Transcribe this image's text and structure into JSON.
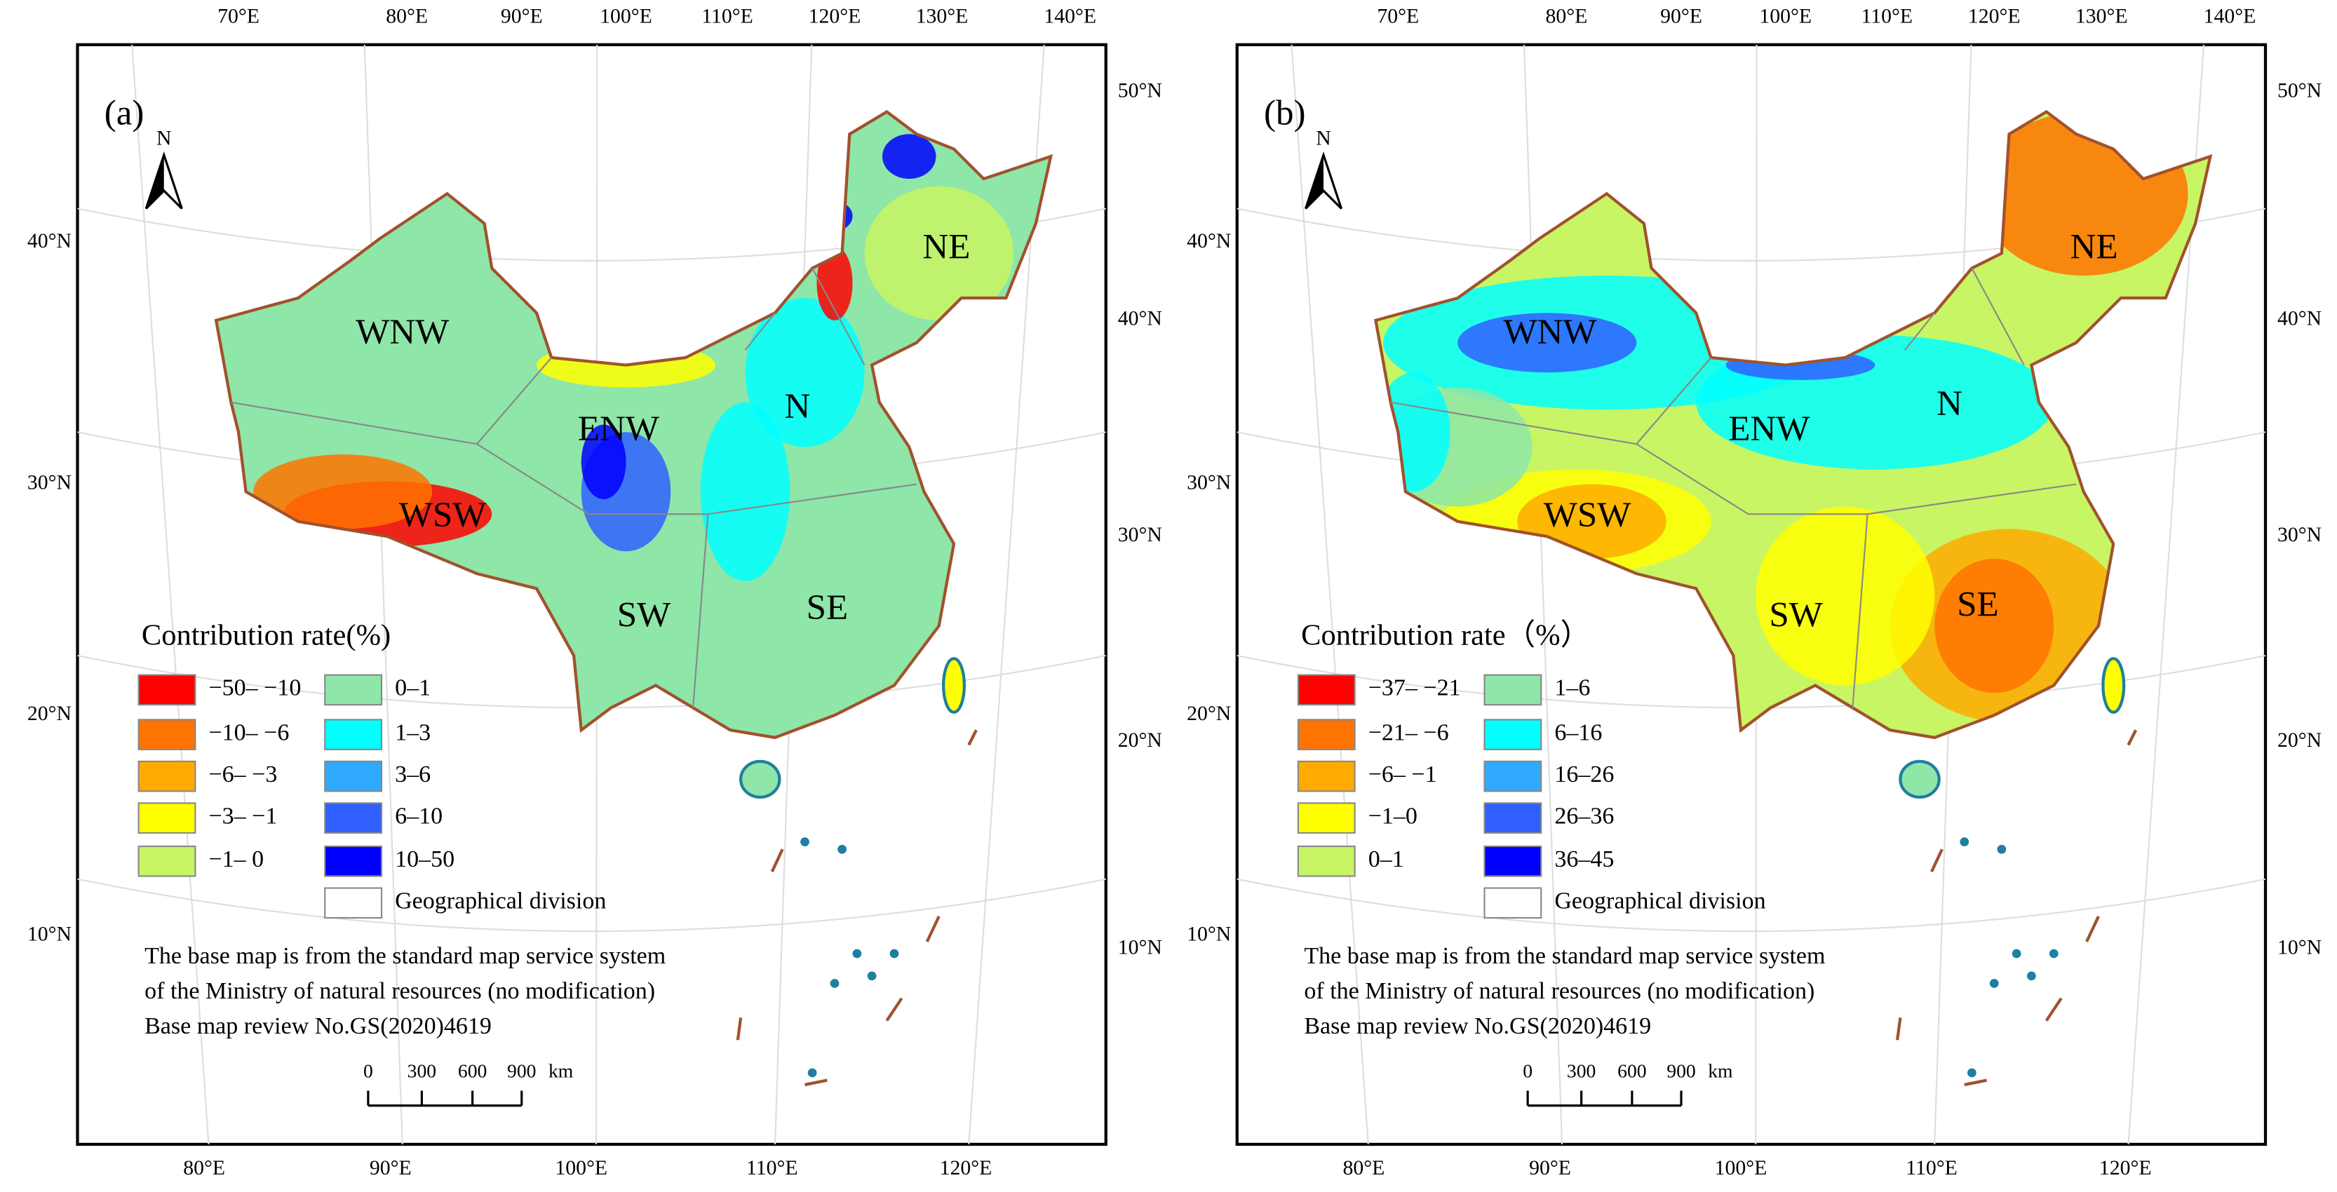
{
  "graticule": {
    "top": [
      "70°E",
      "80°E",
      "90°E",
      "100°E",
      "110°E",
      "120°E",
      "130°E",
      "140°E"
    ],
    "right": [
      "50°N",
      "40°N",
      "30°N",
      "20°N",
      "10°N"
    ],
    "left": [
      "40°N",
      "30°N",
      "20°N",
      "10°N"
    ],
    "bottom": [
      "80°E",
      "90°E",
      "100°E",
      "110°E",
      "120°E"
    ]
  },
  "panels": [
    {
      "label": "(a)",
      "north": "N",
      "regions": [
        "WNW",
        "ENW",
        "N",
        "NE",
        "WSW",
        "SW",
        "SE"
      ],
      "legend": {
        "title": "Contribution rate(%)",
        "items": [
          {
            "label": "−50– −10",
            "color": "#ff0000"
          },
          {
            "label": "−10– −6",
            "color": "#ff7300"
          },
          {
            "label": "−6– −3",
            "color": "#ffaa00"
          },
          {
            "label": "−3– −1",
            "color": "#ffff00"
          },
          {
            "label": "−1– 0",
            "color": "#c8f564"
          },
          {
            "label": "0–1",
            "color": "#8ee6a8"
          },
          {
            "label": "1–3",
            "color": "#00ffff"
          },
          {
            "label": "3–6",
            "color": "#30aaff"
          },
          {
            "label": "6–10",
            "color": "#3060ff"
          },
          {
            "label": "10–50",
            "color": "#0000ff"
          }
        ],
        "division": "Geographical division"
      },
      "note": [
        "The base map is from the standard map service system",
        "of the Ministry of natural resources (no modification)",
        "Base map review No.GS(2020)4619"
      ],
      "scale": {
        "ticks": [
          "0",
          "300",
          "600",
          "900"
        ],
        "unit": "km"
      }
    },
    {
      "label": "(b)",
      "north": "N",
      "regions": [
        "WNW",
        "ENW",
        "N",
        "NE",
        "WSW",
        "SW",
        "SE"
      ],
      "legend": {
        "title": "Contribution rate（%）",
        "items": [
          {
            "label": "−37– −21",
            "color": "#ff0000"
          },
          {
            "label": "−21– −6",
            "color": "#ff7300"
          },
          {
            "label": "−6– −1",
            "color": "#ffaa00"
          },
          {
            "label": "−1–0",
            "color": "#ffff00"
          },
          {
            "label": "0–1",
            "color": "#c8f564"
          },
          {
            "label": "1–6",
            "color": "#8ee6a8"
          },
          {
            "label": "6–16",
            "color": "#00ffff"
          },
          {
            "label": "16–26",
            "color": "#30aaff"
          },
          {
            "label": "26–36",
            "color": "#3060ff"
          },
          {
            "label": "36–45",
            "color": "#0000ff"
          }
        ],
        "division": "Geographical division"
      },
      "note": [
        "The base map is from the standard map service system",
        "of the Ministry of natural resources (no modification)",
        "Base map review No.GS(2020)4619"
      ],
      "scale": {
        "ticks": [
          "0",
          "300",
          "600",
          "900"
        ],
        "unit": "km"
      }
    }
  ]
}
